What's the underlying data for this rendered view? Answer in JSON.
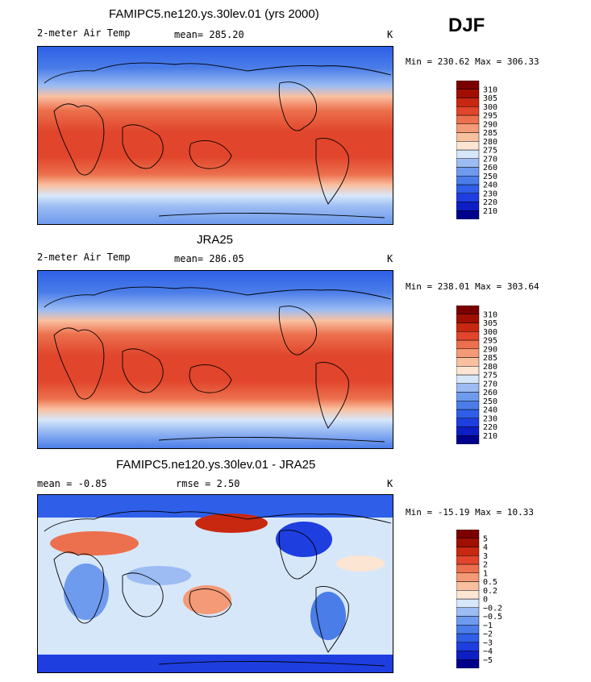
{
  "season": "DJF",
  "chart_data": [
    {
      "type": "heatmap",
      "title": "FAMIPC5.ne120.ys.30lev.01 (yrs 2000)",
      "variable": "2-meter Air Temp",
      "stat1_label": "mean=",
      "stat1_value": "285.20",
      "units": "K",
      "min_label": "Min =",
      "min": "230.62",
      "max_label": "Max =",
      "max": "306.33",
      "levels": [
        "210",
        "220",
        "230",
        "240",
        "250",
        "260",
        "270",
        "275",
        "280",
        "285",
        "290",
        "295",
        "300",
        "305",
        "310"
      ],
      "colors": [
        "#00008c",
        "#0d1ec4",
        "#1e3ee0",
        "#2f5fe8",
        "#4a7de8",
        "#6f9bee",
        "#9cbcf3",
        "#d7e7fa",
        "#fce5d3",
        "#f9c0a0",
        "#f49a76",
        "#ec704d",
        "#e1452b",
        "#c8280f",
        "#a00f00",
        "#7a0000"
      ]
    },
    {
      "type": "heatmap",
      "title": "JRA25",
      "variable": "2-meter Air Temp",
      "stat1_label": "mean=",
      "stat1_value": "286.05",
      "units": "K",
      "min_label": "Min =",
      "min": "238.01",
      "max_label": "Max =",
      "max": "303.64",
      "levels": [
        "210",
        "220",
        "230",
        "240",
        "250",
        "260",
        "270",
        "275",
        "280",
        "285",
        "290",
        "295",
        "300",
        "305",
        "310"
      ],
      "colors": [
        "#00008c",
        "#0d1ec4",
        "#1e3ee0",
        "#2f5fe8",
        "#4a7de8",
        "#6f9bee",
        "#9cbcf3",
        "#d7e7fa",
        "#fce5d3",
        "#f9c0a0",
        "#f49a76",
        "#ec704d",
        "#e1452b",
        "#c8280f",
        "#a00f00",
        "#7a0000"
      ]
    },
    {
      "type": "heatmap",
      "title": "FAMIPC5.ne120.ys.30lev.01 - JRA25",
      "variable": "",
      "stat1_label": "mean =",
      "stat1_value": "-0.85",
      "stat2_label": "rmse =",
      "stat2_value": "2.50",
      "units": "K",
      "min_label": "Min =",
      "min": "-15.19",
      "max_label": "Max =",
      "max": "10.33",
      "levels": [
        "-5",
        "-4",
        "-3",
        "-2",
        "-1",
        "-0.5",
        "-0.2",
        "0",
        "0.2",
        "0.5",
        "1",
        "2",
        "3",
        "4",
        "5"
      ],
      "colors": [
        "#00008c",
        "#0d1ec4",
        "#1e3ee0",
        "#2f5fe8",
        "#4a7de8",
        "#6f9bee",
        "#9cbcf3",
        "#d7e7fa",
        "#fce5d3",
        "#f9c0a0",
        "#f49a76",
        "#ec704d",
        "#e1452b",
        "#c8280f",
        "#a00f00",
        "#7a0000"
      ]
    }
  ]
}
